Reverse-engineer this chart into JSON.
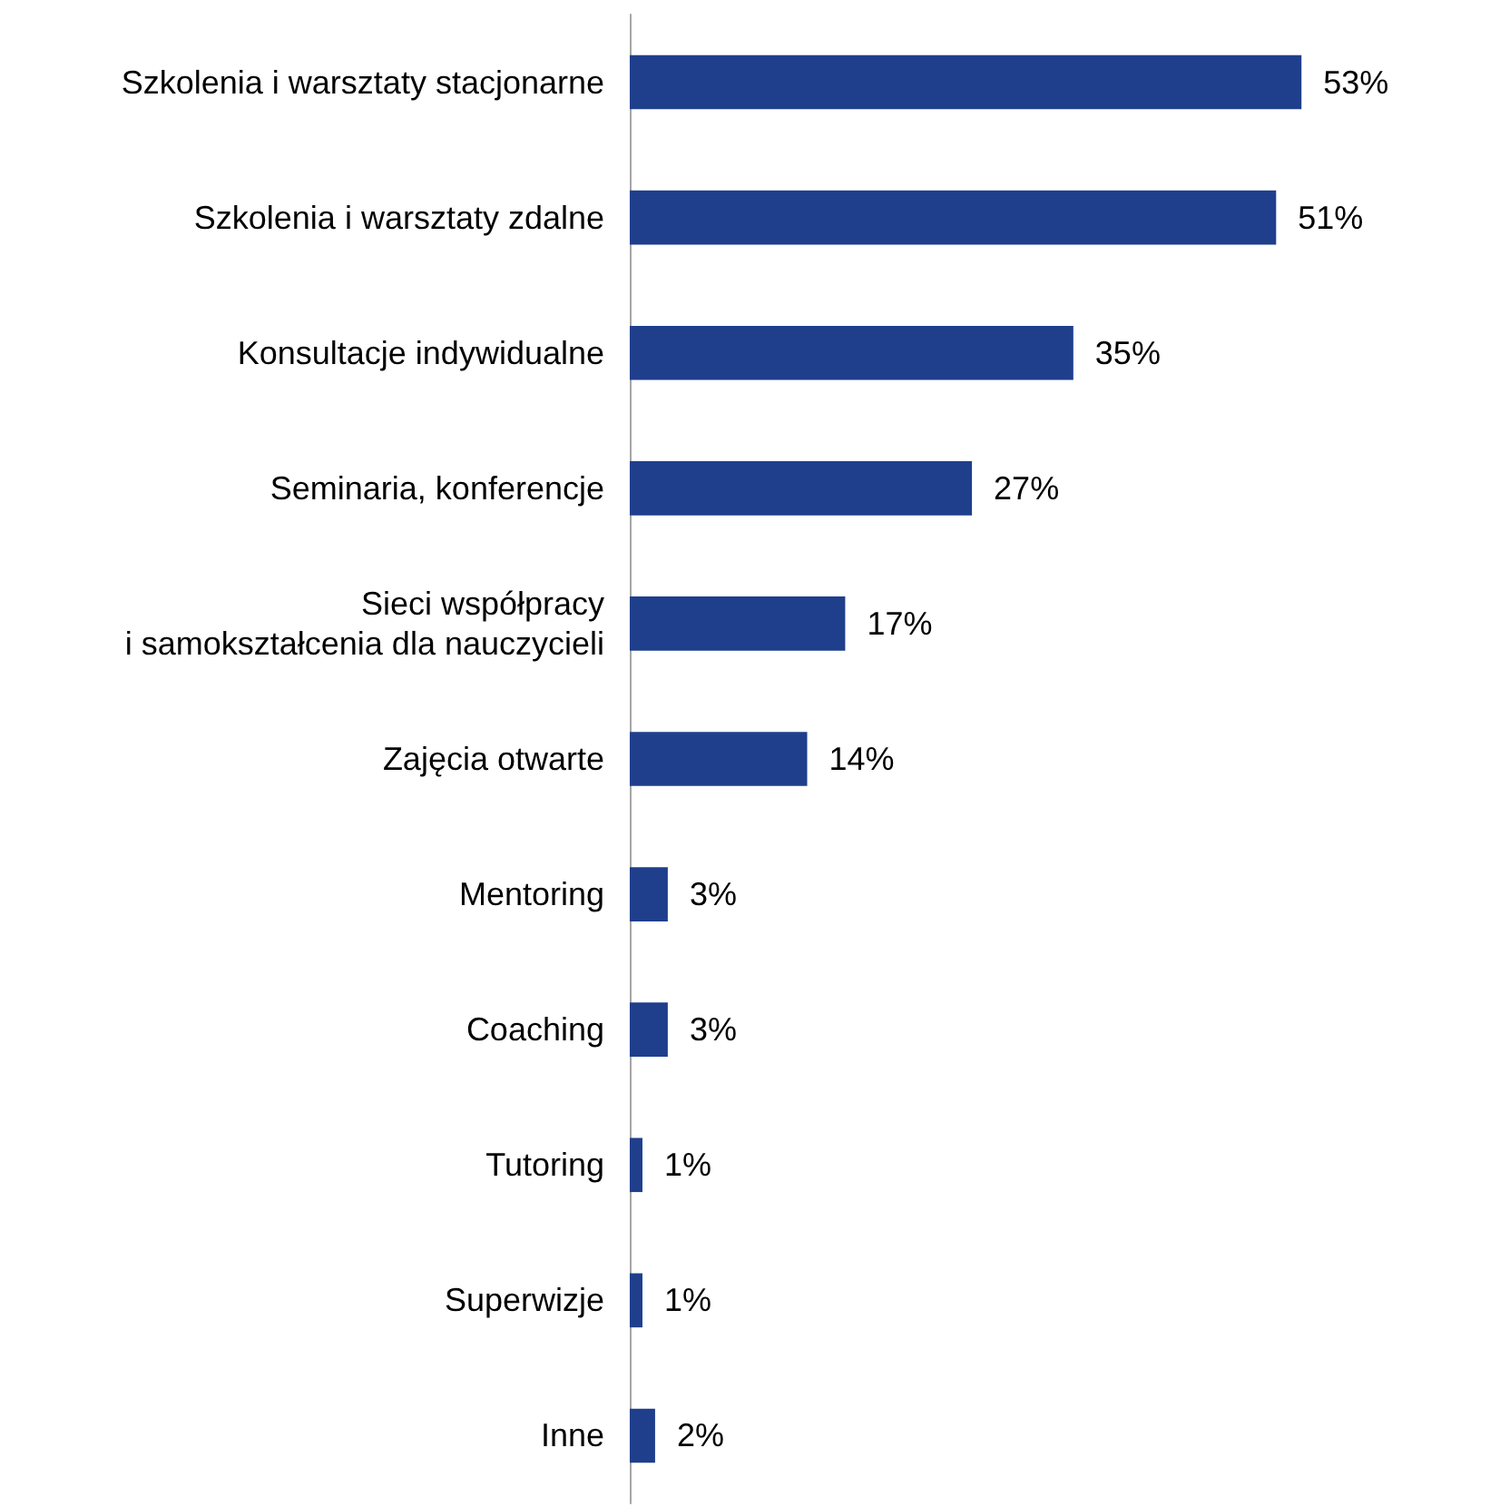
{
  "chart_data": {
    "type": "bar",
    "orientation": "horizontal",
    "categories": [
      "Szkolenia i warsztaty stacjonarne",
      "Szkolenia i warsztaty zdalne",
      "Konsultacje indywidualne",
      "Seminaria, konferencje",
      "Sieci współpracy\ni samokształcenia dla nauczycieli",
      "Zajęcia otwarte",
      "Mentoring",
      "Coaching",
      "Tutoring",
      "Superwizje",
      "Inne"
    ],
    "values": [
      53,
      51,
      35,
      27,
      17,
      14,
      3,
      3,
      1,
      1,
      2
    ],
    "value_labels": [
      "53%",
      "51%",
      "35%",
      "27%",
      "17%",
      "14%",
      "3%",
      "3%",
      "1%",
      "1%",
      "2%"
    ],
    "color": "#1f3f8c"
  }
}
